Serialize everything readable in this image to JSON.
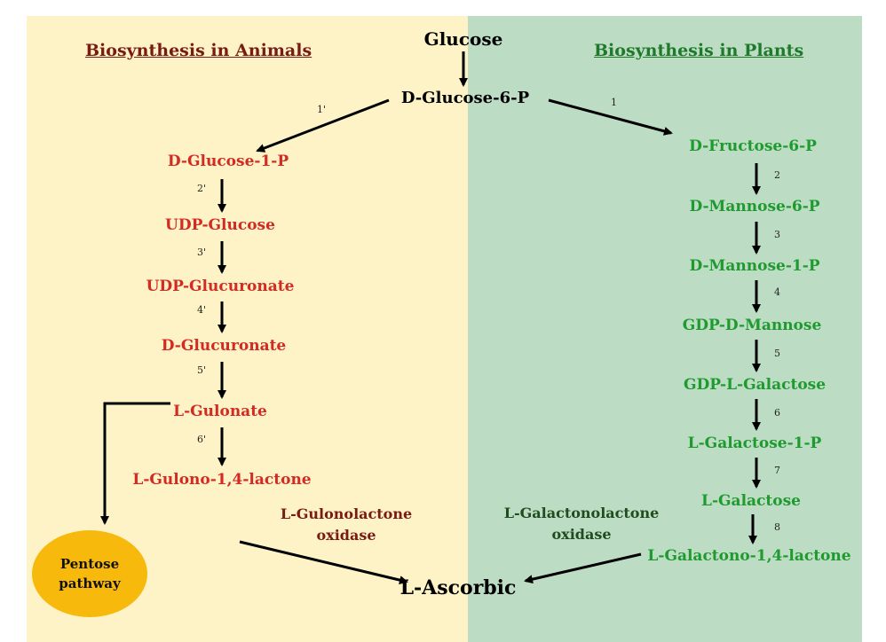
{
  "headings": {
    "animals": "Biosynthesis in Animals",
    "plants": "Biosynthesis in Plants"
  },
  "shared": {
    "glucose": "Glucose",
    "glucose6p": "D-Glucose-6-P",
    "ascorbic": "L-Ascorbic"
  },
  "animal_path": {
    "nodes": [
      "D-Glucose-1-P",
      "UDP-Glucose",
      "UDP-Glucuronate",
      "D-Glucuronate",
      "L-Gulonate",
      "L-Gulono-1,4-lactone"
    ],
    "steps": [
      "1'",
      "2'",
      "3'",
      "4'",
      "5'",
      "6'"
    ],
    "enzyme_line1": "L-Gulonolactone",
    "enzyme_line2": "oxidase",
    "pentose_line1": "Pentose",
    "pentose_line2": "pathway"
  },
  "plant_path": {
    "nodes": [
      "D-Fructose-6-P",
      "D-Mannose-6-P",
      "D-Mannose-1-P",
      "GDP-D-Mannose",
      "GDP-L-Galactose",
      "L-Galactose-1-P",
      "L-Galactose",
      "L-Galactono-1,4-lactone"
    ],
    "steps": [
      "1",
      "2",
      "3",
      "4",
      "5",
      "6",
      "7",
      "8"
    ],
    "enzyme_line1": "L-Galactonolactone",
    "enzyme_line2": "oxidase"
  },
  "colors": {
    "animal_bg": "#fdf3c6",
    "plant_bg": "#bcdcc4",
    "animal_text": "#d42a24",
    "plant_text": "#1e9a2f",
    "animal_heading": "#7a1a14",
    "plant_heading": "#1e7a2a",
    "pentose_fill": "#f7b90c"
  }
}
